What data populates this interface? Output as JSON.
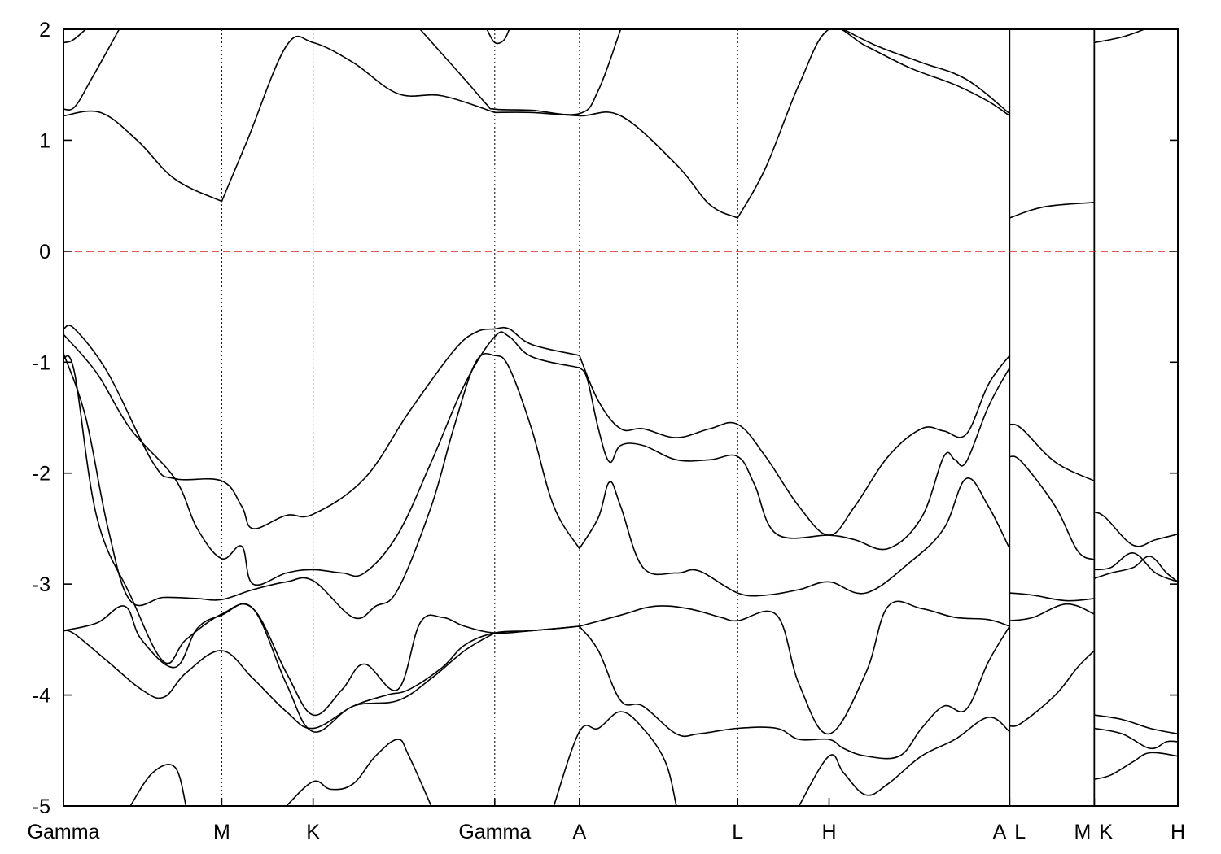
{
  "chart_data": {
    "type": "line",
    "title": "",
    "xlabel": "",
    "ylabel": "",
    "ylim": [
      -5,
      2
    ],
    "yticks": [
      2,
      1,
      0,
      -1,
      -2,
      -3,
      -4,
      -5
    ],
    "xlim": [
      0,
      1
    ],
    "grid": "vertical dotted lines at high-symmetry points",
    "fermi_level": {
      "y": 0,
      "color": "#d22020",
      "style": "dashed"
    },
    "high_symmetry_points": [
      {
        "label": "Gamma",
        "x": 0.0
      },
      {
        "label": "M",
        "x": 0.142
      },
      {
        "label": "K",
        "x": 0.224
      },
      {
        "label": "Gamma",
        "x": 0.387
      },
      {
        "label": "A",
        "x": 0.463
      },
      {
        "label": "L",
        "x": 0.605
      },
      {
        "label": "H",
        "x": 0.687
      },
      {
        "label": "A",
        "x": 0.849
      },
      {
        "label": "L",
        "x": 0.849
      },
      {
        "label": "M",
        "x": 0.925
      },
      {
        "label": "K",
        "x": 0.925
      },
      {
        "label": "H",
        "x": 1.0
      }
    ],
    "segment_breaks": [
      0.849,
      0.925
    ],
    "bands": [
      {
        "name": "",
        "x": [
          0.0,
          0.033,
          0.066,
          0.1,
          0.142
        ],
        "y": [
          1.22,
          1.25,
          1.0,
          0.65,
          0.45
        ]
      },
      {
        "name": "",
        "x": [
          0.142,
          0.165,
          0.2,
          0.224,
          0.26,
          0.3,
          0.34,
          0.387
        ],
        "y": [
          0.45,
          1.0,
          1.85,
          1.88,
          1.7,
          1.42,
          1.4,
          1.25
        ]
      },
      {
        "name": "",
        "x": [
          0.387,
          0.42,
          0.463,
          0.5,
          0.55,
          0.58,
          0.605
        ],
        "y": [
          1.25,
          1.25,
          1.22,
          1.22,
          0.78,
          0.42,
          0.3
        ]
      },
      {
        "name": "",
        "x": [
          0.605,
          0.63,
          0.66,
          0.687,
          0.72,
          0.76,
          0.8,
          0.83,
          0.849
        ],
        "y": [
          0.3,
          0.75,
          1.5,
          2.0,
          1.85,
          1.65,
          1.5,
          1.35,
          1.22
        ]
      },
      {
        "name": "",
        "x": [
          0.849,
          0.88,
          0.925
        ],
        "y": [
          0.3,
          0.4,
          0.44
        ]
      },
      {
        "name": "",
        "x": [
          0.0,
          0.01,
          0.025,
          0.05
        ],
        "y": [
          1.28,
          1.3,
          1.55,
          2.0
        ]
      },
      {
        "name": "",
        "x": [
          0.0,
          0.008,
          0.02
        ],
        "y": [
          1.88,
          1.9,
          2.0
        ]
      },
      {
        "name": "",
        "x": [
          0.32,
          0.36,
          0.38,
          0.387,
          0.42,
          0.463,
          0.48,
          0.5
        ],
        "y": [
          2.0,
          1.55,
          1.32,
          1.28,
          1.27,
          1.24,
          1.45,
          2.0
        ]
      },
      {
        "name": "",
        "x": [
          0.38,
          0.387,
          0.395,
          0.4
        ],
        "y": [
          2.0,
          1.88,
          1.9,
          2.0
        ]
      },
      {
        "name": "",
        "x": [
          0.7,
          0.73,
          0.77,
          0.81,
          0.849
        ],
        "y": [
          2.0,
          1.85,
          1.7,
          1.55,
          1.24
        ]
      },
      {
        "name": "",
        "x": [
          0.925,
          0.95,
          0.97
        ],
        "y": [
          1.88,
          1.93,
          2.0
        ]
      },
      {
        "name": "",
        "x": [
          0.0,
          0.01,
          0.04,
          0.08,
          0.1,
          0.142,
          0.16,
          0.17,
          0.2,
          0.224,
          0.27,
          0.31,
          0.35,
          0.37,
          0.387,
          0.4,
          0.42,
          0.463
        ],
        "y": [
          -0.7,
          -0.7,
          -1.1,
          -1.9,
          -2.05,
          -2.07,
          -2.3,
          -2.5,
          -2.38,
          -2.37,
          -2.05,
          -1.45,
          -0.9,
          -0.73,
          -0.7,
          -0.7,
          -0.84,
          -0.94
        ]
      },
      {
        "name": "",
        "x": [
          0.0,
          0.03,
          0.06,
          0.1,
          0.12,
          0.142,
          0.16,
          0.17,
          0.2,
          0.224,
          0.25,
          0.27,
          0.3,
          0.33,
          0.36,
          0.387,
          0.4,
          0.42,
          0.463
        ],
        "y": [
          -0.75,
          -1.1,
          -1.6,
          -2.05,
          -2.5,
          -2.77,
          -2.66,
          -3.0,
          -2.9,
          -2.87,
          -2.9,
          -2.9,
          -2.55,
          -1.9,
          -1.2,
          -0.77,
          -0.77,
          -0.95,
          -1.05
        ]
      },
      {
        "name": "",
        "x": [
          0.0,
          0.02,
          0.04,
          0.06,
          0.09,
          0.12,
          0.142,
          0.17,
          0.2,
          0.224,
          0.26,
          0.28,
          0.3,
          0.33,
          0.35,
          0.37,
          0.387,
          0.4,
          0.42,
          0.44,
          0.463
        ],
        "y": [
          -0.92,
          -1.5,
          -2.5,
          -3.15,
          -3.12,
          -3.13,
          -3.14,
          -3.05,
          -2.98,
          -2.97,
          -3.3,
          -3.2,
          -3.05,
          -2.3,
          -1.6,
          -1.0,
          -0.94,
          -1.05,
          -1.6,
          -2.3,
          -2.68
        ]
      },
      {
        "name": "",
        "x": [
          0.0,
          0.01,
          0.03,
          0.06,
          0.09,
          0.11,
          0.142,
          0.17,
          0.2,
          0.224,
          0.25,
          0.27,
          0.3,
          0.32,
          0.34,
          0.36,
          0.387,
          0.42,
          0.463
        ],
        "y": [
          -0.96,
          -1.1,
          -2.4,
          -3.1,
          -3.7,
          -3.5,
          -3.27,
          -3.22,
          -3.8,
          -4.18,
          -3.95,
          -3.72,
          -3.95,
          -3.35,
          -3.3,
          -3.38,
          -3.44,
          -3.42,
          -3.38
        ]
      },
      {
        "name": "",
        "x": [
          0.0,
          0.01,
          0.04,
          0.07,
          0.09,
          0.11,
          0.142,
          0.17,
          0.2,
          0.224,
          0.26,
          0.29,
          0.31,
          0.34,
          0.36,
          0.387,
          0.42,
          0.463
        ],
        "y": [
          -3.42,
          -3.45,
          -3.7,
          -3.95,
          -4.02,
          -3.8,
          -3.6,
          -3.85,
          -4.15,
          -4.3,
          -4.1,
          -4.0,
          -3.95,
          -3.75,
          -3.55,
          -3.44,
          -3.42,
          -3.38
        ]
      },
      {
        "name": "",
        "x": [
          0.0,
          0.03,
          0.055,
          0.07,
          0.1,
          0.12,
          0.142,
          0.17,
          0.2,
          0.224,
          0.26,
          0.3,
          0.33,
          0.36,
          0.387
        ],
        "y": [
          -3.42,
          -3.35,
          -3.2,
          -3.5,
          -3.75,
          -3.4,
          -3.28,
          -3.22,
          -3.9,
          -4.33,
          -4.1,
          -4.05,
          -3.85,
          -3.6,
          -3.44
        ]
      },
      {
        "name": "",
        "x": [
          0.06,
          0.08,
          0.1,
          0.11
        ],
        "y": [
          -5.0,
          -4.7,
          -4.65,
          -5.0
        ]
      },
      {
        "name": "",
        "x": [
          0.2,
          0.224,
          0.24,
          0.26,
          0.28,
          0.3,
          0.31,
          0.33
        ],
        "y": [
          -5.0,
          -4.78,
          -4.85,
          -4.8,
          -4.55,
          -4.4,
          -4.55,
          -5.0
        ]
      },
      {
        "name": "",
        "x": [
          0.463,
          0.48,
          0.5,
          0.52,
          0.55,
          0.58,
          0.605,
          0.63,
          0.66,
          0.687,
          0.71,
          0.74,
          0.77,
          0.79,
          0.81,
          0.83,
          0.849
        ],
        "y": [
          -0.94,
          -1.35,
          -1.6,
          -1.6,
          -1.68,
          -1.6,
          -1.56,
          -1.85,
          -2.3,
          -2.56,
          -2.3,
          -1.85,
          -1.6,
          -1.62,
          -1.65,
          -1.2,
          -0.94
        ]
      },
      {
        "name": "",
        "x": [
          0.463,
          0.47,
          0.48,
          0.49,
          0.5,
          0.52,
          0.55,
          0.58,
          0.605,
          0.62,
          0.64,
          0.687,
          0.71,
          0.74,
          0.77,
          0.79,
          0.8,
          0.81,
          0.83,
          0.849
        ],
        "y": [
          -1.05,
          -1.15,
          -1.6,
          -1.9,
          -1.75,
          -1.75,
          -1.88,
          -1.88,
          -1.85,
          -2.1,
          -2.55,
          -2.56,
          -2.6,
          -2.68,
          -2.4,
          -1.85,
          -1.88,
          -1.9,
          -1.4,
          -1.05
        ]
      },
      {
        "name": "",
        "x": [
          0.463,
          0.48,
          0.49,
          0.5,
          0.52,
          0.55,
          0.57,
          0.605,
          0.63,
          0.66,
          0.687,
          0.72,
          0.76,
          0.79,
          0.81,
          0.83,
          0.849
        ],
        "y": [
          -2.68,
          -2.4,
          -2.08,
          -2.3,
          -2.85,
          -2.9,
          -2.88,
          -3.08,
          -3.1,
          -3.05,
          -2.98,
          -3.08,
          -2.8,
          -2.5,
          -2.05,
          -2.3,
          -2.68
        ]
      },
      {
        "name": "",
        "x": [
          0.463,
          0.5,
          0.53,
          0.56,
          0.59,
          0.605,
          0.64,
          0.66,
          0.687,
          0.72,
          0.74,
          0.77,
          0.8,
          0.83,
          0.849
        ],
        "y": [
          -3.38,
          -3.28,
          -3.2,
          -3.22,
          -3.3,
          -3.33,
          -3.28,
          -3.9,
          -4.35,
          -3.8,
          -3.2,
          -3.22,
          -3.3,
          -3.32,
          -3.38
        ]
      },
      {
        "name": "",
        "x": [
          0.463,
          0.48,
          0.5,
          0.52,
          0.55,
          0.57,
          0.605,
          0.64,
          0.66,
          0.687,
          0.7,
          0.72,
          0.75,
          0.77,
          0.79,
          0.81,
          0.83,
          0.849
        ],
        "y": [
          -3.38,
          -3.6,
          -4.05,
          -4.1,
          -4.35,
          -4.35,
          -4.3,
          -4.3,
          -4.4,
          -4.4,
          -4.48,
          -4.55,
          -4.55,
          -4.3,
          -4.1,
          -4.13,
          -3.7,
          -3.38
        ]
      },
      {
        "name": "",
        "x": [
          0.44,
          0.463,
          0.48,
          0.5,
          0.52,
          0.54,
          0.55
        ],
        "y": [
          -5.0,
          -4.33,
          -4.3,
          -4.15,
          -4.3,
          -4.6,
          -5.0
        ]
      },
      {
        "name": "",
        "x": [
          0.66,
          0.687,
          0.7,
          0.72,
          0.74,
          0.77,
          0.8,
          0.83,
          0.849
        ],
        "y": [
          -5.0,
          -4.55,
          -4.7,
          -4.9,
          -4.8,
          -4.55,
          -4.4,
          -4.2,
          -4.33
        ]
      },
      {
        "name": "",
        "x": [
          0.849,
          0.86,
          0.89,
          0.925
        ],
        "y": [
          -1.56,
          -1.6,
          -1.9,
          -2.07
        ]
      },
      {
        "name": "",
        "x": [
          0.849,
          0.86,
          0.89,
          0.91,
          0.925
        ],
        "y": [
          -1.85,
          -1.9,
          -2.3,
          -2.7,
          -2.78
        ]
      },
      {
        "name": "",
        "x": [
          0.849,
          0.87,
          0.9,
          0.925
        ],
        "y": [
          -3.08,
          -3.1,
          -3.15,
          -3.13
        ]
      },
      {
        "name": "",
        "x": [
          0.849,
          0.87,
          0.9,
          0.925
        ],
        "y": [
          -3.33,
          -3.3,
          -3.18,
          -3.27
        ]
      },
      {
        "name": "",
        "x": [
          0.849,
          0.86,
          0.89,
          0.91,
          0.925
        ],
        "y": [
          -4.28,
          -4.25,
          -4.0,
          -3.75,
          -3.6
        ]
      },
      {
        "name": "",
        "x": [
          0.925,
          0.935,
          0.96,
          0.98,
          1.0
        ],
        "y": [
          -2.35,
          -2.4,
          -2.65,
          -2.6,
          -2.55
        ]
      },
      {
        "name": "",
        "x": [
          0.925,
          0.94,
          0.96,
          0.98,
          1.0
        ],
        "y": [
          -2.87,
          -2.85,
          -2.72,
          -2.9,
          -2.98
        ]
      },
      {
        "name": "",
        "x": [
          0.925,
          0.94,
          0.96,
          0.975,
          0.99,
          1.0
        ],
        "y": [
          -2.95,
          -2.9,
          -2.85,
          -2.75,
          -2.9,
          -2.98
        ]
      },
      {
        "name": "",
        "x": [
          0.925,
          0.95,
          0.975,
          1.0
        ],
        "y": [
          -4.18,
          -4.22,
          -4.3,
          -4.35
        ]
      },
      {
        "name": "",
        "x": [
          0.925,
          0.95,
          0.975,
          0.99,
          1.0
        ],
        "y": [
          -4.3,
          -4.35,
          -4.48,
          -4.42,
          -4.42
        ]
      },
      {
        "name": "",
        "x": [
          0.925,
          0.94,
          0.96,
          0.975,
          1.0
        ],
        "y": [
          -4.76,
          -4.72,
          -4.6,
          -4.52,
          -4.55
        ]
      }
    ]
  }
}
